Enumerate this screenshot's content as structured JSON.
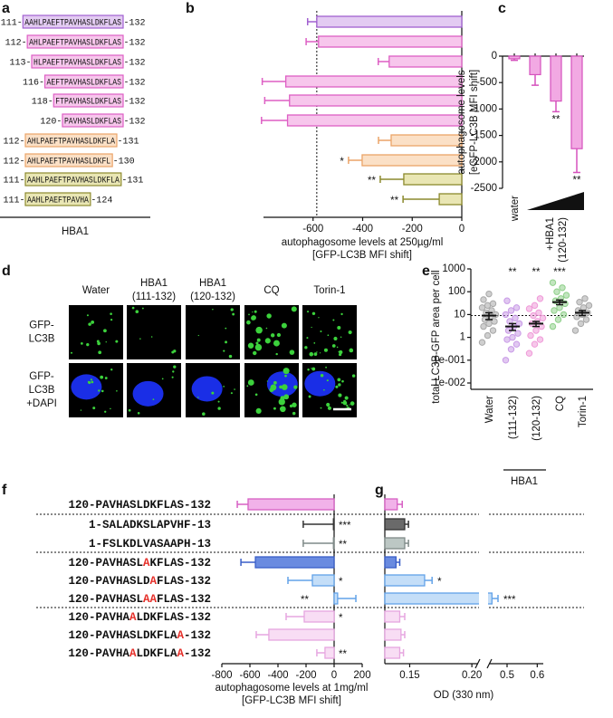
{
  "panel_labels": [
    "a",
    "b",
    "c",
    "d",
    "e",
    "f",
    "g"
  ],
  "panel_a": {
    "protein": "HBA1",
    "rows": [
      {
        "start": "111-",
        "sequence": "AAHLPAEFTPAVHASLDKFLAS",
        "end": "-132"
      },
      {
        "start": "112-",
        "sequence": "AHLPAEFTPAVHASLDKFLAS",
        "end": "-132"
      },
      {
        "start": "113-",
        "sequence": "HLPAEFTPAVHASLDKFLAS",
        "end": "-132"
      },
      {
        "start": "116-",
        "sequence": "AEFTPAVHASLDKFLAS",
        "end": "-132"
      },
      {
        "start": "118-",
        "sequence": "FTPAVHASLDKFLAS",
        "end": "-132"
      },
      {
        "start": "120-",
        "sequence": "PAVHASLDKFLAS",
        "end": "-132"
      },
      {
        "start": "112-",
        "sequence": "AHLPAEFTPAVHASLDKFLA",
        "end": "-131"
      },
      {
        "start": "112-",
        "sequence": "AHLPAEFTPAVHASLDKFL",
        "end": "-130"
      },
      {
        "start": "111-",
        "sequence": "AAHLPAEFTPAVHASLDKFLA",
        "end": "-131"
      },
      {
        "start": "111-",
        "sequence": "AAHLPAEFTPAVHA",
        "end": "-124"
      }
    ]
  },
  "panel_d": {
    "columns": [
      [
        "Water"
      ],
      [
        "HBA1",
        "(111-132)"
      ],
      [
        "HBA1",
        "(120-132)"
      ],
      [
        "CQ"
      ],
      [
        "Torin-1"
      ]
    ],
    "rows": [
      [
        "GFP-",
        "LC3B"
      ],
      [
        "GFP-",
        "LC3B",
        "+DAPI"
      ]
    ]
  },
  "chart_data": [
    {
      "type": "barh",
      "values": [
        -585,
        -578,
        -293,
        -710,
        -695,
        -703,
        -285,
        -402,
        -234,
        -91
      ],
      "errors": [
        37,
        50,
        44,
        95,
        100,
        105,
        51,
        55,
        95,
        146
      ],
      "annotations": [
        null,
        null,
        null,
        null,
        null,
        null,
        null,
        "*",
        "**",
        "**"
      ],
      "colors": [
        "#e3cbf2",
        "#f7c6ec",
        "#f7c6ec",
        "#f7c6ec",
        "#f7c6ec",
        "#f7c6ec",
        "#fbe0c6",
        "#fbe0c6",
        "#e9e6b4",
        "#e9e6b4"
      ],
      "edge_colors": [
        "#a160d0",
        "#dd5fc4",
        "#dd5fc4",
        "#dd5fc4",
        "#dd5fc4",
        "#dd5fc4",
        "#eba468",
        "#eba468",
        "#8c8a2e",
        "#8c8a2e"
      ],
      "xlim": [
        -800,
        0
      ],
      "xticks": [
        -600,
        -400,
        -200,
        0
      ],
      "xlabel": [
        "autophagosome levels at 250µg/ml",
        "[GFP-LC3B MFI shift]"
      ]
    },
    {
      "type": "bar",
      "categories": [
        "water",
        null,
        null,
        null
      ],
      "group_label": [
        "+HBA1",
        "(120-132)"
      ],
      "values": [
        -50,
        -350,
        -850,
        -1750
      ],
      "errors": [
        30,
        200,
        200,
        450
      ],
      "annotations": [
        null,
        null,
        "**",
        "**"
      ],
      "color": "#f2a9e3",
      "edge_color": "#d552bd",
      "ylim": [
        -2500,
        0
      ],
      "yticks": [
        -2500,
        -2000,
        -1500,
        -1000,
        -500,
        0
      ],
      "ylabel": [
        "autophagosome levels",
        "[eGFP-LC3B MFI shift]"
      ]
    },
    {
      "type": "dot",
      "categories": [
        "Water",
        "(111-132)",
        "(120-132)",
        "CQ",
        "Torin-1"
      ],
      "group_label": "HBA1",
      "values": [
        9,
        3,
        4,
        35,
        12
      ],
      "errors": [
        3,
        1,
        1,
        8,
        3
      ],
      "points": [
        [
          0.6,
          1.2,
          2,
          3,
          4,
          5,
          6,
          8,
          10,
          12,
          15,
          20,
          25,
          30,
          45,
          80
        ],
        [
          0.1,
          0.3,
          0.5,
          0.8,
          1,
          1.5,
          2,
          3,
          4,
          5,
          7,
          10,
          15,
          20,
          40
        ],
        [
          0.2,
          0.5,
          0.8,
          1.2,
          2,
          3,
          4,
          5,
          7,
          9,
          12,
          18,
          25,
          50
        ],
        [
          3,
          6,
          10,
          15,
          20,
          30,
          40,
          50,
          70,
          100,
          150,
          250
        ],
        [
          2,
          4,
          6,
          8,
          10,
          12,
          15,
          20,
          25,
          35,
          50
        ]
      ],
      "colors": [
        "#a8a8a8",
        "#c89ae6",
        "#ef9ad8",
        "#8fd08a",
        "#a8a8a8"
      ],
      "annotations": [
        null,
        "**",
        "**",
        "***",
        null
      ],
      "log_y": true,
      "ylim": [
        0.01,
        1000
      ],
      "yticks": [
        {
          "value": 0.01,
          "label": "1e-002"
        },
        {
          "value": 0.1,
          "label": "1e-001"
        },
        1,
        10,
        100,
        1000
      ],
      "ylabel": "total LC3B-GFP area per cell"
    },
    {
      "type": "barh",
      "categories": [
        [
          "120-PAVHASLDKFLAS-132"
        ],
        [
          "1-SALADKSLAPVHF-13"
        ],
        [
          "1-FSLKDLVASAAPH-13"
        ],
        [
          "120-PAVHASL",
          "A",
          "KFLAS-132"
        ],
        [
          "120-PAVHASLD",
          "A",
          "FLAS-132"
        ],
        [
          "120-PAVHASL",
          "AA",
          "FLAS-132"
        ],
        [
          "120-PAVHA",
          "A",
          "LDKFLAS-132"
        ],
        [
          "120-PAVHASLDKFLA",
          "A",
          "-132"
        ],
        [
          "120-PAVHA",
          "A",
          "LDKFLA",
          "A",
          "-132"
        ]
      ],
      "highlight_color": "#e5302a",
      "values": [
        -613,
        -5,
        -5,
        -561,
        -155,
        25,
        -213,
        -465,
        -65
      ],
      "errors": [
        77,
        215,
        215,
        103,
        174,
        130,
        129,
        90,
        58
      ],
      "annotations": [
        null,
        "***",
        "**",
        null,
        "*",
        "**",
        "*",
        null,
        "**"
      ],
      "colors": [
        "#f1b2e9",
        "#6a6a6a",
        "#bcc7c4",
        "#6a8be0",
        "#c4def8",
        "#c4def8",
        "#f8ddf4",
        "#f8ddf4",
        "#f8ddf4"
      ],
      "edge_colors": [
        "#d760c4",
        "#333333",
        "#7f8a88",
        "#3a5fc8",
        "#62a2e8",
        "#62a2e8",
        "#e6a6e0",
        "#e6a6e0",
        "#e6a6e0"
      ],
      "xlim": [
        -800,
        200
      ],
      "xticks": [
        -800,
        -600,
        -400,
        -200,
        0,
        200
      ],
      "xlabel": [
        "autophagosome levels at 1mg/ml",
        "[GFP-LC3B MFI shift]"
      ]
    },
    {
      "type": "barh",
      "values": [
        0.14,
        0.146,
        0.146,
        0.139,
        0.162,
        0.45,
        0.142,
        0.143,
        0.142
      ],
      "errors": [
        0.004,
        0.003,
        0.003,
        0.003,
        0.006,
        0.02,
        0.004,
        0.003,
        0.003
      ],
      "annotations": [
        null,
        null,
        null,
        null,
        "*",
        "***",
        null,
        null,
        null
      ],
      "colors": [
        "#f1b2e9",
        "#6a6a6a",
        "#bcc7c4",
        "#6a8be0",
        "#c4def8",
        "#c4def8",
        "#f8ddf4",
        "#f8ddf4",
        "#f8ddf4"
      ],
      "edge_colors": [
        "#d760c4",
        "#333333",
        "#7f8a88",
        "#3a5fc8",
        "#62a2e8",
        "#62a2e8",
        "#e6a6e0",
        "#e6a6e0",
        "#e6a6e0"
      ],
      "xlim": [
        0.13,
        0.62
      ],
      "xbreak": [
        0.205,
        0.44
      ],
      "xticks": [
        0.15,
        {
          "value": 0.2,
          "label": "0.20"
        },
        0.5,
        0.6
      ],
      "xlabel": "OD (330 nm)"
    }
  ]
}
